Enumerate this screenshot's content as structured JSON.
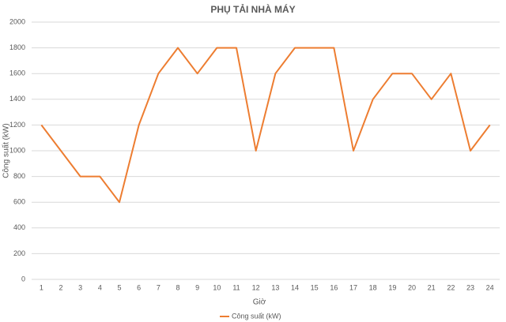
{
  "chart_data": {
    "type": "line",
    "title": "PHỤ TẢI NHÀ MÁY",
    "x_label": "Giờ",
    "y_label": "Công suất (kW)",
    "categories": [
      "1",
      "2",
      "3",
      "4",
      "5",
      "6",
      "7",
      "8",
      "9",
      "10",
      "11",
      "12",
      "13",
      "14",
      "15",
      "16",
      "17",
      "18",
      "19",
      "20",
      "21",
      "22",
      "23",
      "24"
    ],
    "series": [
      {
        "name": "Công suất (kW)",
        "color": "#ed7d31",
        "values": [
          1200,
          1000,
          800,
          800,
          600,
          1200,
          1600,
          1800,
          1600,
          1800,
          1800,
          1000,
          1600,
          1800,
          1800,
          1800,
          1000,
          1400,
          1600,
          1600,
          1400,
          1600,
          1000,
          1200
        ]
      }
    ],
    "ylim": [
      0,
      2000
    ],
    "yticks": [
      0,
      200,
      400,
      600,
      800,
      1000,
      1200,
      1400,
      1600,
      1800,
      2000
    ],
    "grid": true,
    "legend": "bottom"
  }
}
